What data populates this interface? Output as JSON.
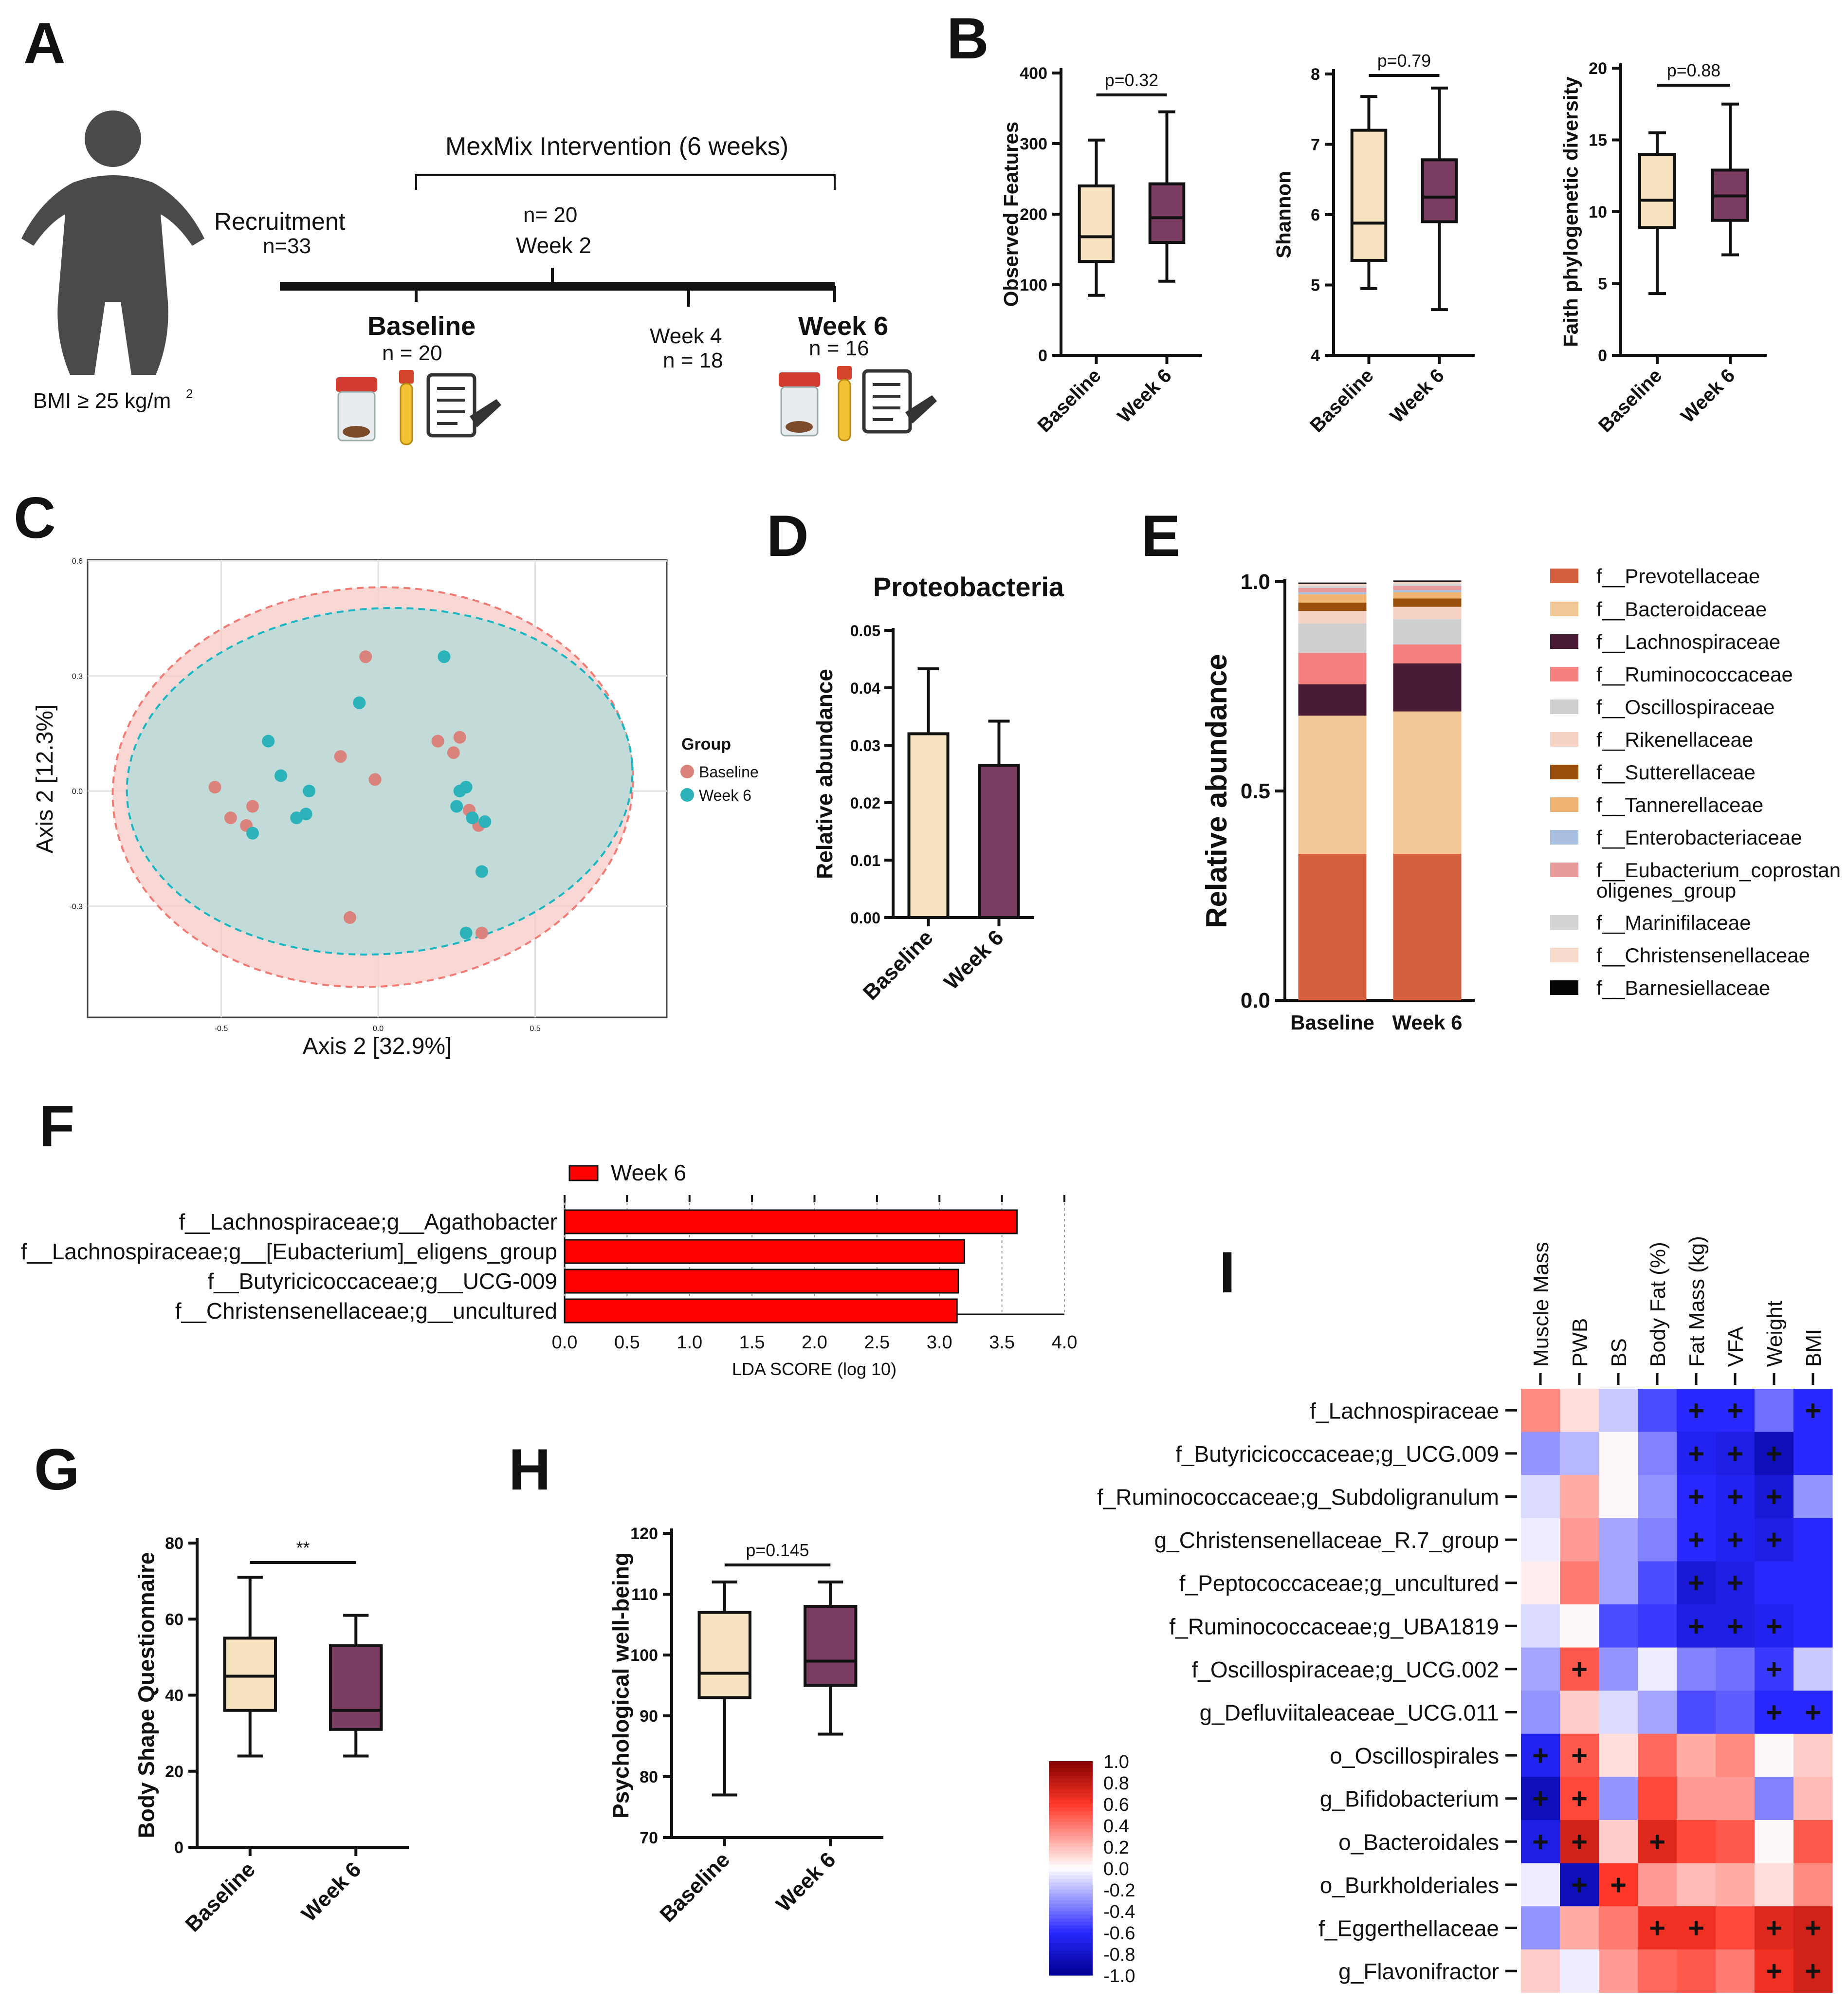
{
  "colors": {
    "baseline_fill": "#f7e2c0",
    "week6_fill": "#7b3d62",
    "pcoa_baseline": "#d9837c",
    "pcoa_week6": "#2bb3b9",
    "ellipse_baseline": "#f7c9c7",
    "ellipse_week6": "#b9dcd8",
    "lda_bar": "#ff0000"
  },
  "panelA": {
    "letter": "A",
    "bmi": "BMI ≥ 25 kg/m",
    "bmi_sup": "2",
    "recruitment": "Recruitment",
    "recruitment_n": "n=33",
    "intervention": "MexMix Intervention (6 weeks)",
    "week2_n": "n= 20",
    "week2": "Week 2",
    "baseline": "Baseline",
    "baseline_n": "n = 20",
    "week4": "Week 4",
    "week4_n": "n = 18",
    "week6": "Week 6",
    "week6_n": "n = 16",
    "icons": [
      "person-silhouette-icon",
      "stool-sample-jar-icon",
      "blood-tube-icon",
      "questionnaire-clipboard-icon"
    ]
  },
  "panelB": {
    "letter": "B",
    "categories": [
      "Baseline",
      "Week 6"
    ],
    "plots": [
      {
        "ylabel": "Observed Features",
        "yticks": [
          0,
          100,
          200,
          300,
          400
        ],
        "ylim": [
          0,
          400
        ],
        "pvalue": "p=0.32",
        "boxes": [
          {
            "min": 85,
            "q1": 133,
            "median": 168,
            "q3": 240,
            "max": 305
          },
          {
            "min": 105,
            "q1": 160,
            "median": 195,
            "q3": 243,
            "max": 345
          }
        ]
      },
      {
        "ylabel": "Shannon",
        "yticks": [
          4,
          5,
          6,
          7,
          8
        ],
        "ylim": [
          4,
          8
        ],
        "pvalue": "p=0.79",
        "boxes": [
          {
            "min": 4.95,
            "q1": 5.35,
            "median": 5.88,
            "q3": 7.2,
            "max": 7.68
          },
          {
            "min": 4.65,
            "q1": 5.9,
            "median": 6.25,
            "q3": 6.78,
            "max": 7.8
          }
        ]
      },
      {
        "ylabel": "Faith phylogenetic diversity",
        "yticks": [
          0,
          5,
          10,
          15,
          20
        ],
        "ylim": [
          0,
          20
        ],
        "pvalue": "p=0.88",
        "boxes": [
          {
            "min": 4.3,
            "q1": 8.9,
            "median": 10.8,
            "q3": 14.0,
            "max": 15.5
          },
          {
            "min": 7.0,
            "q1": 9.4,
            "median": 11.1,
            "q3": 12.9,
            "max": 17.5
          }
        ]
      }
    ]
  },
  "panelC": {
    "letter": "C",
    "xlabel": "Axis 2 [32.9%]",
    "ylabel": "Axis 2 [12.3%]",
    "xticks": [
      "-0.5",
      "0.0",
      "0.5"
    ],
    "yticks": [
      "0.6",
      "0.3",
      "0.0",
      "-0.3"
    ],
    "legend_title": "Group",
    "legend": [
      "Baseline",
      "Week 6"
    ],
    "chart_data": {
      "type": "scatter",
      "baseline": [
        [
          -0.52,
          0.01
        ],
        [
          -0.47,
          -0.07
        ],
        [
          -0.42,
          -0.09
        ],
        [
          -0.4,
          -0.04
        ],
        [
          -0.12,
          0.09
        ],
        [
          -0.04,
          0.35
        ],
        [
          -0.01,
          0.03
        ],
        [
          0.19,
          0.13
        ],
        [
          0.24,
          0.1
        ],
        [
          0.26,
          0.14
        ],
        [
          0.29,
          -0.05
        ],
        [
          0.32,
          -0.09
        ],
        [
          -0.09,
          -0.33
        ],
        [
          0.33,
          -0.37
        ]
      ],
      "week6": [
        [
          -0.35,
          0.13
        ],
        [
          -0.31,
          0.04
        ],
        [
          -0.26,
          -0.07
        ],
        [
          -0.23,
          -0.06
        ],
        [
          -0.22,
          0.0
        ],
        [
          -0.06,
          0.23
        ],
        [
          0.21,
          0.35
        ],
        [
          0.25,
          -0.04
        ],
        [
          0.26,
          0.0
        ],
        [
          0.28,
          0.01
        ],
        [
          0.3,
          -0.07
        ],
        [
          0.34,
          -0.08
        ],
        [
          0.33,
          -0.21
        ],
        [
          0.28,
          -0.37
        ],
        [
          -0.4,
          -0.11
        ]
      ]
    }
  },
  "panelD": {
    "letter": "D",
    "title": "Proteobacteria",
    "ylabel": "Relative abundance",
    "yticks": [
      "0.00",
      "0.01",
      "0.02",
      "0.03",
      "0.04",
      "0.05"
    ],
    "chart_data": {
      "type": "bar",
      "categories": [
        "Baseline",
        "Week 6"
      ],
      "values": [
        0.032,
        0.0265
      ],
      "errors": [
        0.0113,
        0.0077
      ],
      "ylim": [
        0,
        0.05
      ]
    }
  },
  "panelE": {
    "letter": "E",
    "ylabel": "Relative abundance",
    "yticks": [
      "0.0",
      "0.5",
      "1.0"
    ],
    "chart_data": {
      "type": "bar",
      "stacked": true,
      "categories": [
        "Baseline",
        "Week 6"
      ],
      "series": [
        {
          "name": "f__Prevotellaceae",
          "color": "#d45f3c",
          "values": [
            0.35,
            0.35
          ]
        },
        {
          "name": "f__Bacteroidaceae",
          "color": "#f2c796",
          "values": [
            0.33,
            0.34
          ]
        },
        {
          "name": "f__Lachnospiraceae",
          "color": "#4a1b35",
          "values": [
            0.075,
            0.115
          ]
        },
        {
          "name": "f__Ruminococcaceae",
          "color": "#f48080",
          "values": [
            0.075,
            0.045
          ]
        },
        {
          "name": "f__Oscillospiraceae",
          "color": "#cfcfcf",
          "values": [
            0.07,
            0.06
          ]
        },
        {
          "name": "f__Rikenellaceae",
          "color": "#f7d3c6",
          "values": [
            0.03,
            0.03
          ]
        },
        {
          "name": "f__Sutterellaceae",
          "color": "#9a4f0a",
          "values": [
            0.02,
            0.02
          ]
        },
        {
          "name": "f__Tannerellaceae",
          "color": "#eeb370",
          "values": [
            0.02,
            0.015
          ]
        },
        {
          "name": "f__Enterobacteriaceae",
          "color": "#a9bfdf",
          "values": [
            0.005,
            0.005
          ]
        },
        {
          "name": "f__Eubacterium_coprostanoligenes_group",
          "color": "#e79a9a",
          "values": [
            0.01,
            0.01
          ]
        },
        {
          "name": "f__Marinifilaceae",
          "color": "#d3d3d3",
          "values": [
            0.005,
            0.005
          ]
        },
        {
          "name": "f__Christensenellaceae",
          "color": "#f8dacd",
          "values": [
            0.005,
            0.005
          ]
        },
        {
          "name": "f__Barnesiellaceae",
          "color": "#050505",
          "values": [
            0.003,
            0.003
          ]
        }
      ],
      "ylim": [
        0,
        1.0
      ]
    }
  },
  "panelF": {
    "letter": "F",
    "legend": "Week 6",
    "xlabel": "LDA SCORE (log 10)",
    "xticks": [
      "0.0",
      "0.5",
      "1.0",
      "1.5",
      "2.0",
      "2.5",
      "3.0",
      "3.5",
      "4.0"
    ],
    "chart_data": {
      "type": "bar",
      "orientation": "horizontal",
      "categories": [
        "f__Lachnospiraceae;g__Agathobacter",
        "f__Lachnospiraceae;g__[Eubacterium]_eligens_group",
        "f__Butyricicoccaceae;g__UCG-009",
        "f__Christensenellaceae;g__uncultured"
      ],
      "values": [
        3.62,
        3.2,
        3.15,
        3.14
      ],
      "xlim": [
        0,
        4.0
      ]
    }
  },
  "panelG": {
    "letter": "G",
    "ylabel": "Body Shape Questionnaire",
    "yticks": [
      0,
      20,
      40,
      60,
      80
    ],
    "sig": "**",
    "categories": [
      "Baseline",
      "Week 6"
    ],
    "chart_data": {
      "type": "box",
      "ylim": [
        0,
        80
      ],
      "boxes": [
        {
          "min": 24,
          "q1": 36,
          "median": 45,
          "q3": 55,
          "max": 71
        },
        {
          "min": 24,
          "q1": 31,
          "median": 36,
          "q3": 53,
          "max": 61
        }
      ]
    }
  },
  "panelH": {
    "letter": "H",
    "ylabel": "Psychological well-being",
    "yticks": [
      70,
      80,
      90,
      100,
      110,
      120
    ],
    "pvalue": "p=0.145",
    "categories": [
      "Baseline",
      "Week 6"
    ],
    "chart_data": {
      "type": "box",
      "ylim": [
        70,
        120
      ],
      "boxes": [
        {
          "min": 77,
          "q1": 93,
          "median": 97,
          "q3": 107,
          "max": 112
        },
        {
          "min": 87,
          "q1": 95,
          "median": 99,
          "q3": 108,
          "max": 112
        }
      ]
    }
  },
  "panelI": {
    "letter": "I",
    "columns": [
      "Muscle Mass",
      "PWB",
      "BS",
      "Body Fat (%)",
      "Fat Mass (kg)",
      "VFA",
      "Weight",
      "BMI"
    ],
    "rows": [
      "f_Lachnospiraceae",
      "f_Butyricicoccaceae;g_UCG.009",
      "f_Ruminococcaceae;g_Subdoligranulum",
      "g_Christensenellaceae_R.7_group",
      "f_Peptococcaceae;g_uncultured",
      "f_Ruminococcaceae;g_UBA1819",
      "f_Oscillospiraceae;g_UCG.002",
      "g_Defluviitaleaceae_UCG.011",
      "o_Oscillospirales",
      "g_Bifidobacterium",
      "o_Bacteroidales",
      "o_Burkholderiales",
      "f_Eggerthellaceae",
      "g_Flavonifractor"
    ],
    "colorbar_ticks": [
      "1.0",
      "0.8",
      "0.6",
      "0.4",
      "0.2",
      "0.0",
      "-0.2",
      "-0.4",
      "-0.6",
      "-0.8",
      "-1.0"
    ],
    "sig_mark": "+",
    "chart_data": {
      "type": "heatmap",
      "values": [
        [
          0.35,
          0.1,
          -0.15,
          -0.5,
          -0.6,
          -0.6,
          -0.4,
          -0.6
        ],
        [
          -0.3,
          -0.2,
          0.02,
          -0.35,
          -0.65,
          -0.7,
          -0.85,
          -0.6
        ],
        [
          -0.1,
          0.25,
          0.02,
          -0.3,
          -0.6,
          -0.65,
          -0.75,
          -0.3
        ],
        [
          -0.05,
          0.3,
          -0.25,
          -0.35,
          -0.6,
          -0.65,
          -0.7,
          -0.6
        ],
        [
          0.05,
          0.4,
          -0.25,
          -0.5,
          -0.75,
          -0.7,
          -0.6,
          -0.6
        ],
        [
          -0.1,
          0.02,
          -0.5,
          -0.55,
          -0.7,
          -0.7,
          -0.65,
          -0.6
        ],
        [
          -0.25,
          0.5,
          -0.3,
          -0.05,
          -0.35,
          -0.4,
          -0.55,
          -0.15
        ],
        [
          -0.3,
          0.15,
          -0.1,
          -0.25,
          -0.5,
          -0.45,
          -0.6,
          -0.6
        ],
        [
          -0.65,
          0.5,
          0.1,
          0.45,
          0.25,
          0.35,
          0.02,
          0.15
        ],
        [
          -0.85,
          0.55,
          -0.3,
          0.55,
          0.3,
          0.3,
          -0.35,
          0.2
        ],
        [
          -0.7,
          0.75,
          0.15,
          0.7,
          0.55,
          0.5,
          0.02,
          0.5
        ],
        [
          -0.05,
          -0.85,
          0.6,
          0.3,
          0.2,
          0.25,
          0.1,
          0.35
        ],
        [
          -0.3,
          0.25,
          0.4,
          0.65,
          0.65,
          0.55,
          0.7,
          0.75
        ],
        [
          0.15,
          -0.05,
          0.3,
          0.45,
          0.5,
          0.4,
          0.65,
          0.75
        ]
      ],
      "significant": [
        [
          0,
          0,
          0,
          0,
          1,
          1,
          0,
          1
        ],
        [
          0,
          0,
          0,
          0,
          1,
          1,
          1,
          0
        ],
        [
          0,
          0,
          0,
          0,
          1,
          1,
          1,
          0
        ],
        [
          0,
          0,
          0,
          0,
          1,
          1,
          1,
          0
        ],
        [
          0,
          0,
          0,
          0,
          1,
          1,
          0,
          0
        ],
        [
          0,
          0,
          0,
          0,
          1,
          1,
          1,
          0
        ],
        [
          0,
          1,
          0,
          0,
          0,
          0,
          1,
          0
        ],
        [
          0,
          0,
          0,
          0,
          0,
          0,
          1,
          1
        ],
        [
          1,
          1,
          0,
          0,
          0,
          0,
          0,
          0
        ],
        [
          1,
          1,
          0,
          0,
          0,
          0,
          0,
          0
        ],
        [
          1,
          1,
          0,
          1,
          0,
          0,
          0,
          0
        ],
        [
          0,
          1,
          1,
          0,
          0,
          0,
          0,
          0
        ],
        [
          0,
          0,
          0,
          1,
          1,
          0,
          1,
          1
        ],
        [
          0,
          0,
          0,
          0,
          0,
          0,
          1,
          1
        ]
      ],
      "range": [
        -1.0,
        1.0
      ]
    }
  }
}
